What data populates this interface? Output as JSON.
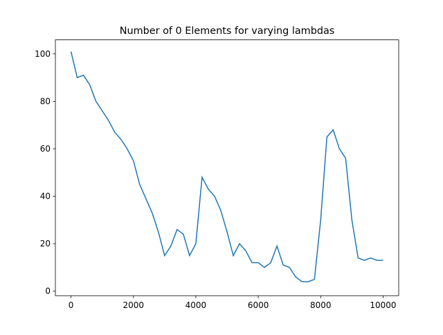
{
  "chart_data": {
    "type": "line",
    "title": "Number of 0 Elements for varying lambdas",
    "x": [
      0,
      200,
      400,
      600,
      800,
      1000,
      1200,
      1400,
      1600,
      1800,
      2000,
      2200,
      2400,
      2600,
      2800,
      3000,
      3200,
      3400,
      3600,
      3800,
      4000,
      4200,
      4400,
      4600,
      4800,
      5000,
      5200,
      5400,
      5600,
      5800,
      6000,
      6200,
      6400,
      6600,
      6800,
      7000,
      7200,
      7400,
      7600,
      7800,
      8000,
      8200,
      8400,
      8600,
      8800,
      9000,
      9200,
      9400,
      9600,
      9800,
      10000
    ],
    "series": [
      {
        "color": "#1f77b4",
        "values": [
          101,
          90,
          91,
          87,
          80,
          76,
          72,
          67,
          64,
          60,
          55,
          45,
          39,
          33,
          25,
          15,
          19,
          26,
          24,
          15,
          20,
          48,
          43,
          40,
          34,
          25,
          15,
          20,
          17,
          12,
          12,
          10,
          12,
          19,
          11,
          10,
          6,
          4,
          4,
          5,
          30,
          65,
          68,
          60,
          56,
          30,
          14,
          13,
          14,
          13,
          13
        ]
      }
    ],
    "xlim": [
      -500,
      10500
    ],
    "ylim": [
      -1.9,
      105.9
    ],
    "xticks": [
      0,
      2000,
      4000,
      6000,
      8000,
      10000
    ],
    "yticks": [
      0,
      20,
      40,
      60,
      80,
      100
    ]
  }
}
